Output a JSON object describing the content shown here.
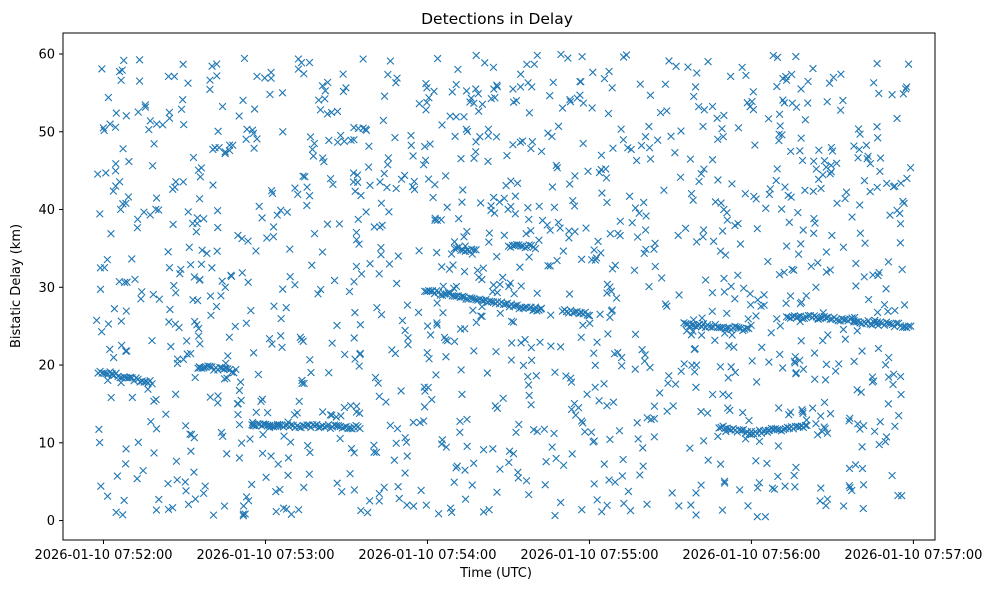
{
  "chart_data": {
    "type": "scatter",
    "title": "Detections in Delay",
    "xlabel": "Time (UTC)",
    "ylabel": "Bistatic Delay (km)",
    "marker": "x",
    "color": "#1f77b4",
    "grid": false,
    "legend": false,
    "xlim": [
      "2026-01-10 07:51:45",
      "2026-01-10 07:57:08"
    ],
    "ylim": [
      -2.5,
      62.7
    ],
    "x_ticks": [
      "2026-01-10 07:52:00",
      "2026-01-10 07:53:00",
      "2026-01-10 07:54:00",
      "2026-01-10 07:55:00",
      "2026-01-10 07:56:00",
      "2026-01-10 07:57:00"
    ],
    "y_ticks": [
      "0",
      "10",
      "20",
      "30",
      "40",
      "50",
      "60"
    ],
    "tracks": [
      {
        "start": "2026-01-10 07:51:58",
        "end": "2026-01-10 07:52:18",
        "delay_start": 19.2,
        "delay_end": 17.7
      },
      {
        "start": "2026-01-10 07:52:35",
        "end": "2026-01-10 07:52:49",
        "delay_start": 19.8,
        "delay_end": 19.2
      },
      {
        "start": "2026-01-10 07:52:55",
        "end": "2026-01-10 07:53:35",
        "delay_start": 12.3,
        "delay_end": 12.0
      },
      {
        "start": "2026-01-10 07:53:59",
        "end": "2026-01-10 07:54:42",
        "delay_start": 29.6,
        "delay_end": 27.0
      },
      {
        "start": "2026-01-10 07:54:10",
        "end": "2026-01-10 07:54:18",
        "delay_start": 35.0,
        "delay_end": 34.7
      },
      {
        "start": "2026-01-10 07:54:30",
        "end": "2026-01-10 07:54:40",
        "delay_start": 35.3,
        "delay_end": 35.2
      },
      {
        "start": "2026-01-10 07:54:50",
        "end": "2026-01-10 07:55:00",
        "delay_start": 27.0,
        "delay_end": 26.5
      },
      {
        "start": "2026-01-10 07:55:35",
        "end": "2026-01-10 07:55:59",
        "delay_start": 25.3,
        "delay_end": 24.6
      },
      {
        "start": "2026-01-10 07:55:48",
        "end": "2026-01-10 07:56:00",
        "delay_start": 12.0,
        "delay_end": 11.3
      },
      {
        "start": "2026-01-10 07:56:00",
        "end": "2026-01-10 07:56:20",
        "delay_start": 11.3,
        "delay_end": 12.1
      },
      {
        "start": "2026-01-10 07:56:13",
        "end": "2026-01-10 07:56:38",
        "delay_start": 26.3,
        "delay_end": 25.8
      },
      {
        "start": "2026-01-10 07:56:38",
        "end": "2026-01-10 07:56:59",
        "delay_start": 25.6,
        "delay_end": 25.0
      }
    ]
  }
}
